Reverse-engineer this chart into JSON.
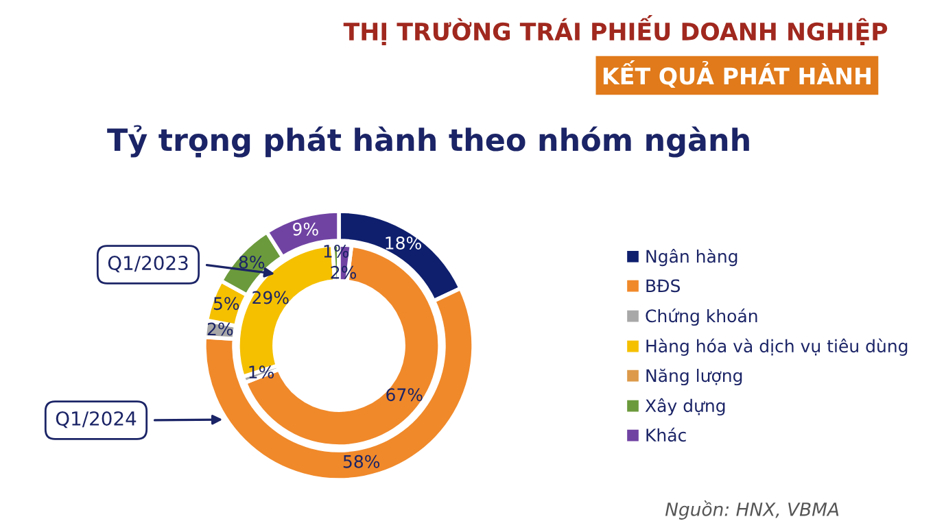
{
  "chart_data": {
    "type": "donut",
    "title": "THỊ TRƯỜNG TRÁI PHIẾU DOANH NGHIỆP",
    "subtitle": "KẾT QUẢ PHÁT HÀNH",
    "annotations": [
      "Tỷ trọng phát hành theo nhóm ngành",
      "Nguồn: HNX, VBMA"
    ],
    "categories": [
      "Ngân hàng",
      "BĐS",
      "Chứng khoán",
      "Hàng hóa và dịch vụ tiêu dùng",
      "Năng lượng",
      "Xây dựng",
      "Khác"
    ],
    "colors": [
      "#0f1f6e",
      "#f0892a",
      "#a8a8a8",
      "#f5c000",
      "#dd9a4a",
      "#6b9a3c",
      "#7043a3"
    ],
    "series": [
      {
        "name": "Q1/2024",
        "values": [
          18,
          58,
          2,
          5,
          0,
          8,
          9
        ],
        "value_labels": [
          "18%",
          "58%",
          "2%",
          "5%",
          null,
          "8%",
          "9%"
        ]
      },
      {
        "name": "Q1/2023",
        "values": [
          0,
          67,
          1,
          29,
          0,
          1,
          2
        ],
        "value_labels": [
          null,
          "67%",
          "1%",
          "29%",
          null,
          "1%",
          "2%"
        ]
      }
    ],
    "legend": "right"
  }
}
